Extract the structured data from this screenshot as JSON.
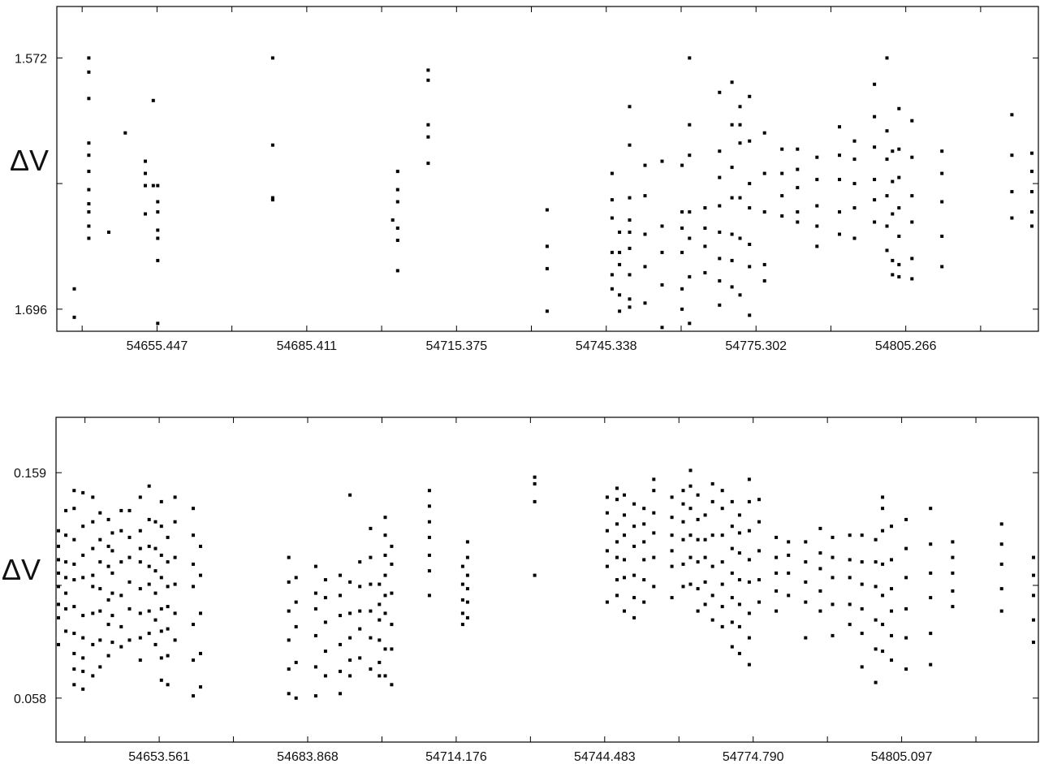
{
  "chart_data": [
    {
      "type": "scatter",
      "ylabel": "ΔV",
      "y_inverted": true,
      "xlim": [
        54635.4,
        54831.8
      ],
      "ylim": [
        1.7069,
        1.5466
      ],
      "xticks": [
        54655.447,
        54685.411,
        54715.375,
        54745.338,
        54775.302,
        54805.266
      ],
      "yticks": [
        1.572,
        1.696
      ],
      "y_minor_tick": 1.634,
      "grid": false,
      "points_by_time": [
        [
          54638.9,
          [
            1.686,
            1.7
          ]
        ],
        [
          54641.8,
          [
            1.572,
            1.579,
            1.592,
            1.614,
            1.62,
            1.628,
            1.637,
            1.644,
            1.648,
            1.655,
            1.661
          ]
        ],
        [
          54645.8,
          [
            1.658
          ]
        ],
        [
          54649.1,
          [
            1.609
          ]
        ],
        [
          54653.1,
          [
            1.623,
            1.629,
            1.635,
            1.649
          ]
        ],
        [
          54654.7,
          [
            1.593,
            1.635
          ]
        ],
        [
          54655.6,
          [
            1.635,
            1.643,
            1.648,
            1.657,
            1.661,
            1.672,
            1.703
          ]
        ],
        [
          54678.6,
          [
            1.572,
            1.642
          ]
        ],
        [
          54678.6,
          [
            1.615,
            1.641
          ]
        ],
        [
          54702.6,
          [
            1.652
          ]
        ],
        [
          54703.6,
          [
            1.628,
            1.637,
            1.643,
            1.656,
            1.662,
            1.677
          ]
        ],
        [
          54709.7,
          [
            1.578,
            1.583,
            1.605,
            1.611,
            1.624
          ]
        ],
        [
          54733.5,
          [
            1.647,
            1.665,
            1.676,
            1.697
          ]
        ],
        [
          54746.5,
          [
            1.629,
            1.642,
            1.651,
            1.668,
            1.679,
            1.686
          ]
        ],
        [
          54748.0,
          [
            1.658,
            1.668,
            1.674,
            1.689,
            1.697
          ]
        ],
        [
          54750.0,
          [
            1.596,
            1.615,
            1.641,
            1.652,
            1.658,
            1.666,
            1.679,
            1.691,
            1.695
          ]
        ],
        [
          54753.1,
          [
            1.625,
            1.64,
            1.659,
            1.675,
            1.693
          ]
        ],
        [
          54756.5,
          [
            1.623,
            1.655,
            1.668,
            1.684,
            1.705
          ]
        ],
        [
          54760.5,
          [
            1.625,
            1.648,
            1.656,
            1.668,
            1.686,
            1.696
          ]
        ],
        [
          54762.0,
          [
            1.572,
            1.605,
            1.62,
            1.648,
            1.661,
            1.68,
            1.703
          ]
        ],
        [
          54765.1,
          [
            1.646,
            1.656,
            1.665,
            1.678
          ]
        ],
        [
          54768.0,
          [
            1.589,
            1.618,
            1.631,
            1.645,
            1.658,
            1.671,
            1.682,
            1.694
          ]
        ],
        [
          54770.5,
          [
            1.584,
            1.605,
            1.626,
            1.641,
            1.659,
            1.672,
            1.685
          ]
        ],
        [
          54772.1,
          [
            1.596,
            1.605,
            1.614,
            1.641,
            1.661,
            1.689
          ]
        ],
        [
          54774.0,
          [
            1.591,
            1.613,
            1.634,
            1.646,
            1.664,
            1.675,
            1.699
          ]
        ],
        [
          54777.0,
          [
            1.609,
            1.629,
            1.648,
            1.674,
            1.682
          ]
        ],
        [
          54780.5,
          [
            1.617,
            1.629,
            1.64,
            1.65
          ]
        ],
        [
          54783.6,
          [
            1.617,
            1.627,
            1.636,
            1.648,
            1.653
          ]
        ],
        [
          54787.5,
          [
            1.621,
            1.632,
            1.645,
            1.655,
            1.665
          ]
        ],
        [
          54792.0,
          [
            1.606,
            1.62,
            1.632,
            1.648,
            1.659
          ]
        ],
        [
          54795.0,
          [
            1.613,
            1.622,
            1.634,
            1.646,
            1.661
          ]
        ],
        [
          54799.0,
          [
            1.585,
            1.601,
            1.616,
            1.632,
            1.642,
            1.653
          ]
        ],
        [
          54801.5,
          [
            1.572,
            1.608,
            1.622,
            1.64,
            1.655,
            1.667
          ]
        ],
        [
          54802.6,
          [
            1.618,
            1.633,
            1.649,
            1.672,
            1.679
          ]
        ],
        [
          54803.9,
          [
            1.597,
            1.617,
            1.631,
            1.646,
            1.66,
            1.674,
            1.68
          ]
        ],
        [
          54806.5,
          [
            1.603,
            1.621,
            1.64,
            1.653,
            1.671,
            1.681
          ]
        ],
        [
          54812.5,
          [
            1.618,
            1.629,
            1.643,
            1.66,
            1.675
          ]
        ],
        [
          54826.5,
          [
            1.6,
            1.62,
            1.638,
            1.651
          ]
        ],
        [
          54830.5,
          [
            1.619,
            1.628,
            1.638,
            1.648,
            1.655
          ]
        ]
      ]
    },
    {
      "type": "scatter",
      "ylabel": "ΔV",
      "y_inverted": true,
      "xlim": [
        54632.5,
        54833.0
      ],
      "ylim": [
        0.0383,
        0.1838
      ],
      "xticks": [
        54653.561,
        54683.868,
        54714.176,
        54744.483,
        54774.79,
        54805.097
      ],
      "yticks": [
        0.058,
        0.159
      ],
      "y_minor_tick": 0.1085,
      "grid": false,
      "points_by_time": [
        [
          54633.0,
          [
            0.082,
            0.094,
            0.1,
            0.108,
            0.114,
            0.12,
            0.126,
            0.133
          ]
        ],
        [
          54634.5,
          [
            0.088,
            0.098,
            0.105,
            0.112,
            0.119,
            0.131,
            0.142
          ]
        ],
        [
          54636.2,
          [
            0.064,
            0.071,
            0.078,
            0.087,
            0.099,
            0.111,
            0.118,
            0.129,
            0.143,
            0.151
          ]
        ],
        [
          54638.0,
          [
            0.062,
            0.07,
            0.076,
            0.085,
            0.095,
            0.112,
            0.122,
            0.135,
            0.15
          ]
        ],
        [
          54640.0,
          [
            0.068,
            0.082,
            0.096,
            0.108,
            0.113,
            0.125,
            0.137,
            0.148
          ]
        ],
        [
          54641.5,
          [
            0.072,
            0.084,
            0.097,
            0.107,
            0.119,
            0.129,
            0.141
          ]
        ],
        [
          54643.2,
          [
            0.077,
            0.091,
            0.102,
            0.117,
            0.126,
            0.138
          ]
        ],
        [
          54644.0,
          [
            0.083,
            0.095,
            0.105,
            0.114,
            0.124,
            0.132
          ]
        ],
        [
          54645.8,
          [
            0.081,
            0.09,
            0.104,
            0.119,
            0.133,
            0.142
          ]
        ],
        [
          54647.5,
          [
            0.084,
            0.098,
            0.11,
            0.121,
            0.13,
            0.142
          ]
        ],
        [
          54649.7,
          [
            0.075,
            0.085,
            0.096,
            0.107,
            0.119,
            0.125,
            0.133,
            0.148
          ]
        ],
        [
          54651.5,
          [
            0.087,
            0.097,
            0.109,
            0.117,
            0.126,
            0.138,
            0.153
          ]
        ],
        [
          54652.8,
          [
            0.082,
            0.093,
            0.105,
            0.115,
            0.125,
            0.137
          ]
        ],
        [
          54654.0,
          [
            0.066,
            0.076,
            0.088,
            0.098,
            0.112,
            0.122,
            0.135,
            0.146
          ]
        ],
        [
          54655.3,
          [
            0.064,
            0.077,
            0.089,
            0.099,
            0.108,
            0.119,
            0.13
          ]
        ],
        [
          54656.8,
          [
            0.084,
            0.096,
            0.109,
            0.121,
            0.137,
            0.148
          ]
        ],
        [
          54660.5,
          [
            0.059,
            0.075,
            0.091,
            0.108,
            0.118,
            0.131,
            0.143
          ]
        ],
        [
          54662.0,
          [
            0.063,
            0.078,
            0.096,
            0.113,
            0.126
          ]
        ],
        [
          54680.0,
          [
            0.06,
            0.071,
            0.084,
            0.097,
            0.11,
            0.121
          ]
        ],
        [
          54681.5,
          [
            0.058,
            0.074,
            0.09,
            0.101,
            0.112
          ]
        ],
        [
          54685.5,
          [
            0.059,
            0.072,
            0.086,
            0.098,
            0.105,
            0.117
          ]
        ],
        [
          54687.5,
          [
            0.068,
            0.079,
            0.092,
            0.103,
            0.111
          ]
        ],
        [
          54690.5,
          [
            0.06,
            0.07,
            0.082,
            0.095,
            0.104,
            0.113
          ]
        ],
        [
          54692.5,
          [
            0.068,
            0.075,
            0.085,
            0.096,
            0.11,
            0.149
          ]
        ],
        [
          54694.5,
          [
            0.076,
            0.089,
            0.097,
            0.108,
            0.119
          ]
        ],
        [
          54696.7,
          [
            0.071,
            0.085,
            0.097,
            0.109,
            0.121,
            0.134
          ]
        ],
        [
          54698.5,
          [
            0.068,
            0.074,
            0.084,
            0.093,
            0.1,
            0.109
          ]
        ],
        [
          54699.7,
          [
            0.068,
            0.08,
            0.096,
            0.104,
            0.113,
            0.122,
            0.131,
            0.139
          ]
        ],
        [
          54701.0,
          [
            0.064,
            0.08,
            0.091,
            0.105,
            0.118,
            0.126
          ]
        ],
        [
          54708.7,
          [
            0.104,
            0.115,
            0.122,
            0.13,
            0.137,
            0.144,
            0.151
          ]
        ],
        [
          54715.5,
          [
            0.091,
            0.096,
            0.102,
            0.109,
            0.117
          ]
        ],
        [
          54716.5,
          [
            0.094,
            0.101,
            0.107,
            0.113,
            0.121,
            0.128
          ]
        ],
        [
          54730.2,
          [
            0.113,
            0.146,
            0.154,
            0.157
          ]
        ],
        [
          54745.0,
          [
            0.101,
            0.117,
            0.124,
            0.133,
            0.141,
            0.148
          ]
        ],
        [
          54747.0,
          [
            0.104,
            0.111,
            0.121,
            0.128,
            0.136,
            0.147,
            0.152
          ]
        ],
        [
          54748.5,
          [
            0.097,
            0.112,
            0.12,
            0.131,
            0.14,
            0.149
          ]
        ],
        [
          54750.5,
          [
            0.094,
            0.103,
            0.113,
            0.126,
            0.135,
            0.145
          ]
        ],
        [
          54752.5,
          [
            0.101,
            0.111,
            0.12,
            0.128,
            0.136,
            0.143
          ]
        ],
        [
          54754.5,
          [
            0.108,
            0.121,
            0.132,
            0.141,
            0.151,
            0.156
          ]
        ],
        [
          54758.2,
          [
            0.103,
            0.117,
            0.124,
            0.131,
            0.139,
            0.148
          ]
        ],
        [
          54760.5,
          [
            0.108,
            0.118,
            0.129,
            0.137,
            0.145,
            0.151
          ]
        ],
        [
          54762.0,
          [
            0.109,
            0.121,
            0.131,
            0.143,
            0.153,
            0.16
          ]
        ],
        [
          54763.5,
          [
            0.097,
            0.107,
            0.119,
            0.129,
            0.138,
            0.149
          ]
        ],
        [
          54765.0,
          [
            0.1,
            0.11,
            0.121,
            0.129,
            0.14
          ]
        ],
        [
          54766.5,
          [
            0.093,
            0.104,
            0.117,
            0.131,
            0.146,
            0.154
          ]
        ],
        [
          54768.5,
          [
            0.09,
            0.099,
            0.109,
            0.119,
            0.131,
            0.143,
            0.151
          ]
        ],
        [
          54770.5,
          [
            0.081,
            0.092,
            0.103,
            0.114,
            0.125,
            0.135,
            0.146
          ]
        ],
        [
          54772.0,
          [
            0.078,
            0.09,
            0.1,
            0.111,
            0.123,
            0.132,
            0.14
          ]
        ],
        [
          54774.0,
          [
            0.073,
            0.085,
            0.096,
            0.11,
            0.12,
            0.133,
            0.146,
            0.156
          ]
        ],
        [
          54776.0,
          [
            0.101,
            0.111,
            0.124,
            0.137,
            0.147
          ]
        ],
        [
          54779.5,
          [
            0.097,
            0.106,
            0.114,
            0.121,
            0.13
          ]
        ],
        [
          54782.0,
          [
            0.104,
            0.114,
            0.122,
            0.128
          ]
        ],
        [
          54785.5,
          [
            0.085,
            0.101,
            0.11,
            0.119,
            0.128
          ]
        ],
        [
          54788.5,
          [
            0.097,
            0.106,
            0.116,
            0.123,
            0.134
          ]
        ],
        [
          54791.0,
          [
            0.086,
            0.1,
            0.112,
            0.121,
            0.13
          ]
        ],
        [
          54794.5,
          [
            0.091,
            0.1,
            0.112,
            0.12,
            0.131
          ]
        ],
        [
          54797.0,
          [
            0.072,
            0.087,
            0.098,
            0.109,
            0.119,
            0.131
          ]
        ],
        [
          54799.8,
          [
            0.065,
            0.08,
            0.093,
            0.108,
            0.119,
            0.129
          ]
        ],
        [
          54801.2,
          [
            0.079,
            0.091,
            0.104,
            0.118,
            0.133,
            0.143,
            0.148
          ]
        ],
        [
          54803.0,
          [
            0.075,
            0.086,
            0.097,
            0.107,
            0.12,
            0.135
          ]
        ],
        [
          54806.0,
          [
            0.071,
            0.085,
            0.098,
            0.112,
            0.125,
            0.138
          ]
        ],
        [
          54811.0,
          [
            0.073,
            0.087,
            0.103,
            0.114,
            0.127,
            0.143
          ]
        ],
        [
          54815.5,
          [
            0.099,
            0.106,
            0.114,
            0.121,
            0.128
          ]
        ],
        [
          54825.5,
          [
            0.097,
            0.107,
            0.118,
            0.127,
            0.136
          ]
        ],
        [
          54832.0,
          [
            0.083,
            0.093,
            0.104,
            0.113,
            0.121
          ]
        ]
      ]
    }
  ]
}
